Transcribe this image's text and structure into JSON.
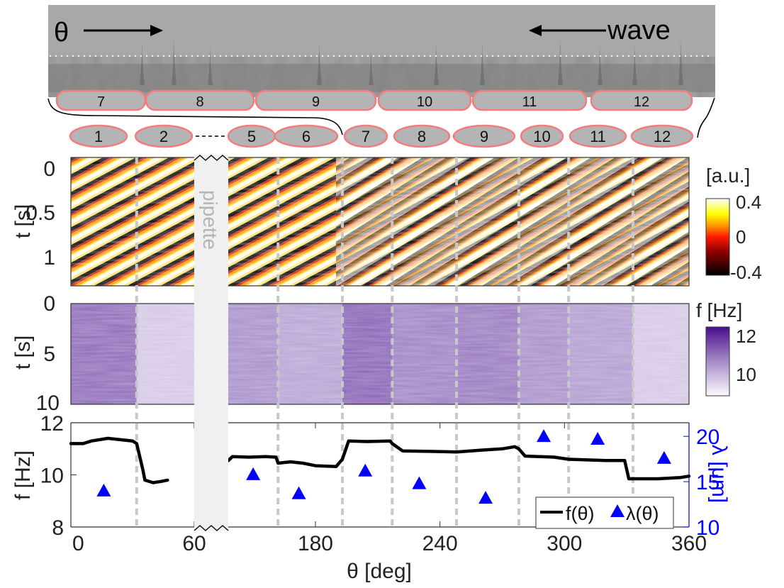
{
  "micrograph": {
    "theta_label": "θ",
    "wave_label": "wave",
    "top_cells": [
      "7",
      "8",
      "9",
      "10",
      "11",
      "12"
    ],
    "bottom_cells": [
      "1",
      "2",
      "5",
      "6",
      "7",
      "8",
      "9",
      "10",
      "11",
      "12"
    ],
    "ellipsis": "- - - -"
  },
  "pipette_label": "pipette",
  "chart_data": [
    {
      "type": "heatmap",
      "name": "kymograph",
      "ylabel": "t [s]",
      "yticks": [
        "0",
        "0.5",
        "1"
      ],
      "ylim": [
        0,
        1.25
      ],
      "colorbar": {
        "title": "[a.u.]",
        "ticks": [
          "0.4",
          "0",
          "-0.4"
        ],
        "range": [
          -0.4,
          0.4
        ],
        "colormap": "hot"
      },
      "description": "diagonal traveling wave stripes across theta, one block per cilium group"
    },
    {
      "type": "heatmap",
      "name": "frequency-map",
      "ylabel": "t [s]",
      "yticks": [
        "0",
        "5",
        "10"
      ],
      "ylim": [
        0,
        10
      ],
      "colorbar": {
        "title": "f [Hz]",
        "ticks": [
          "12",
          "10"
        ],
        "range": [
          9,
          12.5
        ],
        "colormap": "purples"
      },
      "block_freq_hz": [
        11.2,
        9.8,
        10.7,
        10.4,
        11.3,
        10.9,
        11.0,
        10.7,
        10.5,
        9.8
      ]
    },
    {
      "type": "line",
      "name": "frequency-wavelength",
      "xlabel": "θ [deg]",
      "ylabel": "f [Hz]",
      "ylabel_right": "λ [μm]",
      "xticks": [
        "0",
        "60",
        "180",
        "240",
        "300",
        "360"
      ],
      "yticks": [
        "8",
        "10",
        "12"
      ],
      "yticks_right": [
        "10",
        "15",
        "20"
      ],
      "ylim": [
        8,
        12
      ],
      "ylim_right": [
        10,
        21.5
      ],
      "axis_break": [
        60,
        138
      ],
      "boundaries_deg": [
        32,
        162,
        193,
        217,
        248,
        278,
        302,
        333
      ],
      "legend": {
        "position": "bottom-right",
        "entries": [
          "f(θ)",
          "λ(θ)"
        ]
      },
      "series": [
        {
          "name": "f(θ)",
          "color": "#000000",
          "segments": [
            [
              [
                0,
                11.2
              ],
              [
                6,
                11.2
              ],
              [
                10,
                11.3
              ],
              [
                18,
                11.4
              ],
              [
                24,
                11.35
              ],
              [
                30,
                11.3
              ],
              [
                32,
                11.2
              ],
              [
                35,
                10.2
              ],
              [
                36,
                9.8
              ],
              [
                40,
                9.7
              ],
              [
                44,
                9.75
              ],
              [
                47,
                9.8
              ]
            ],
            [
              [
                138,
                10.55
              ],
              [
                140,
                10.7
              ],
              [
                148,
                10.68
              ],
              [
                156,
                10.7
              ],
              [
                161,
                10.68
              ],
              [
                162,
                10.45
              ],
              [
                168,
                10.5
              ],
              [
                174,
                10.45
              ],
              [
                180,
                10.35
              ],
              [
                190,
                10.32
              ],
              [
                193,
                10.6
              ],
              [
                196,
                11.3
              ],
              [
                205,
                11.28
              ],
              [
                216,
                11.3
              ],
              [
                217,
                11.2
              ],
              [
                222,
                10.92
              ],
              [
                235,
                10.9
              ],
              [
                248,
                10.88
              ],
              [
                260,
                10.95
              ],
              [
                270,
                11.0
              ],
              [
                276,
                11.08
              ],
              [
                278,
                11.0
              ],
              [
                281,
                10.72
              ],
              [
                295,
                10.68
              ],
              [
                302,
                10.6
              ],
              [
                320,
                10.55
              ],
              [
                329,
                10.55
              ],
              [
                331,
                9.85
              ],
              [
                345,
                9.85
              ],
              [
                356,
                9.9
              ],
              [
                360,
                9.95
              ]
            ]
          ]
        },
        {
          "name": "λ(θ)",
          "color": "#0000ff",
          "marker": "triangle",
          "x": [
            16,
            150,
            172,
            204,
            230,
            262,
            290,
            316,
            348
          ],
          "y": [
            14.0,
            15.8,
            13.7,
            16.2,
            14.8,
            13.2,
            20.0,
            19.7,
            17.6
          ]
        }
      ]
    }
  ]
}
